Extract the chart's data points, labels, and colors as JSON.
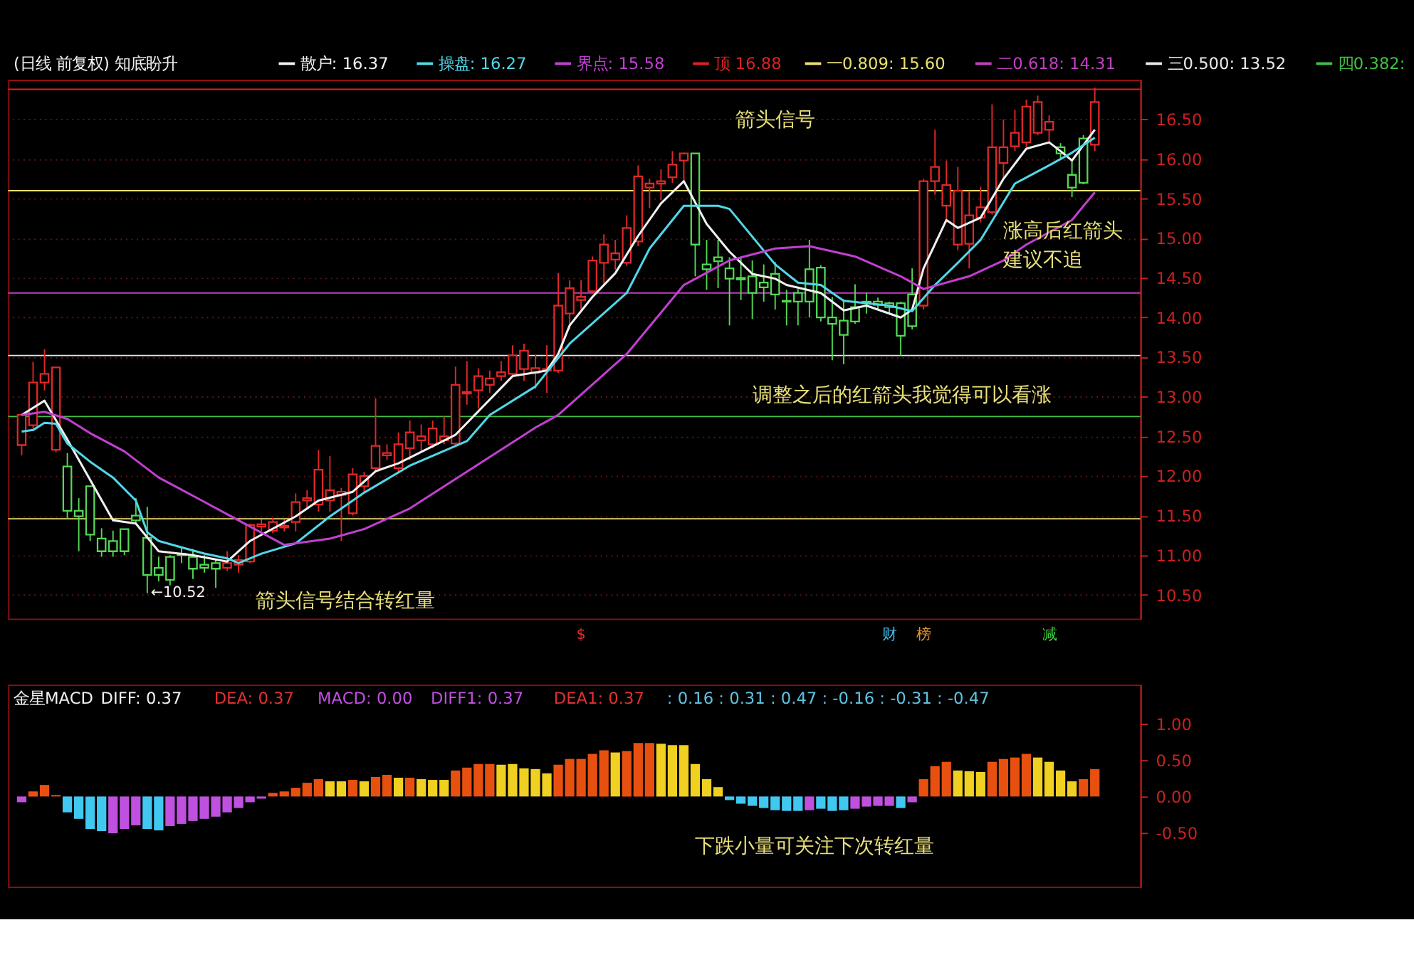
{
  "chart_data": [
    {
      "type": "candlestick",
      "title": "(日线 前复权) 知底盼升",
      "categories": [
        null,
        null,
        null,
        null,
        null,
        null,
        null,
        null,
        null,
        null,
        null,
        null,
        null,
        null,
        null,
        null,
        null,
        null,
        null,
        null,
        null,
        null,
        null,
        null,
        null,
        null,
        null,
        null,
        null,
        null,
        null,
        null,
        null,
        null,
        null,
        null,
        null,
        null,
        null,
        null,
        null,
        null,
        null,
        null,
        null,
        null,
        null,
        null,
        null,
        null,
        null,
        null,
        null,
        null,
        null,
        null,
        null,
        null,
        null,
        null,
        null,
        null,
        null,
        null,
        null,
        null,
        null,
        null,
        null,
        null,
        null,
        null,
        null,
        null,
        null,
        null,
        null,
        null,
        null,
        null,
        null,
        null,
        null,
        null,
        null,
        null,
        null,
        null,
        null,
        null,
        null,
        null,
        null,
        null,
        null
      ],
      "ohlc": [
        [
          12.39,
          12.77,
          12.26,
          12.77
        ],
        [
          12.64,
          13.44,
          12.6,
          13.18
        ],
        [
          13.18,
          13.6,
          13.08,
          13.29
        ],
        [
          12.33,
          13.37,
          12.3,
          13.37
        ],
        [
          12.12,
          12.29,
          11.46,
          11.56
        ],
        [
          11.56,
          11.72,
          11.05,
          11.49
        ],
        [
          11.87,
          11.87,
          11.18,
          11.26
        ],
        [
          11.21,
          11.34,
          10.98,
          11.05
        ],
        [
          11.18,
          11.31,
          10.98,
          11.05
        ],
        [
          11.33,
          11.33,
          11.0,
          11.05
        ],
        [
          11.5,
          11.72,
          11.4,
          11.44
        ],
        [
          11.22,
          11.61,
          10.52,
          10.75
        ],
        [
          10.84,
          10.98,
          10.67,
          10.75
        ],
        [
          10.98,
          11.0,
          10.62,
          10.69
        ],
        [
          11.02,
          11.1,
          10.9,
          11.0
        ],
        [
          10.98,
          11.08,
          10.7,
          10.83
        ],
        [
          10.88,
          11.0,
          10.78,
          10.84
        ],
        [
          10.9,
          10.95,
          10.59,
          10.83
        ],
        [
          10.84,
          11.05,
          10.8,
          10.9
        ],
        [
          10.88,
          11.0,
          10.78,
          10.94
        ],
        [
          10.92,
          11.4,
          10.9,
          11.38
        ],
        [
          11.36,
          11.45,
          11.3,
          11.39
        ],
        [
          11.31,
          11.47,
          11.28,
          11.42
        ],
        [
          11.35,
          11.45,
          11.3,
          11.37
        ],
        [
          11.42,
          11.78,
          11.3,
          11.67
        ],
        [
          11.69,
          11.82,
          11.6,
          11.72
        ],
        [
          11.64,
          12.33,
          11.55,
          12.08
        ],
        [
          11.69,
          12.25,
          11.55,
          11.82
        ],
        [
          11.76,
          11.85,
          11.18,
          11.8
        ],
        [
          11.53,
          12.1,
          11.5,
          12.02
        ],
        [
          11.87,
          12.05,
          11.8,
          12.0
        ],
        [
          12.1,
          12.98,
          12.05,
          12.38
        ],
        [
          12.26,
          12.4,
          12.2,
          12.29
        ],
        [
          12.1,
          12.55,
          12.05,
          12.4
        ],
        [
          12.35,
          12.7,
          12.2,
          12.55
        ],
        [
          12.45,
          12.65,
          12.3,
          12.5
        ],
        [
          12.4,
          12.7,
          12.35,
          12.6
        ],
        [
          12.45,
          12.75,
          12.4,
          12.5
        ],
        [
          12.41,
          13.38,
          12.38,
          13.15
        ],
        [
          13.04,
          13.45,
          12.9,
          13.06
        ],
        [
          13.08,
          13.36,
          12.85,
          13.26
        ],
        [
          13.15,
          13.33,
          13.05,
          13.23
        ],
        [
          13.26,
          13.45,
          13.2,
          13.31
        ],
        [
          13.29,
          13.65,
          13.25,
          13.52
        ],
        [
          13.35,
          13.67,
          13.2,
          13.58
        ],
        [
          13.3,
          13.53,
          13.1,
          13.36
        ],
        [
          13.33,
          13.65,
          13.05,
          13.35
        ],
        [
          13.33,
          14.56,
          13.3,
          14.15
        ],
        [
          14.05,
          14.47,
          13.85,
          14.37
        ],
        [
          14.22,
          14.47,
          14.1,
          14.26
        ],
        [
          14.33,
          14.77,
          14.3,
          14.72
        ],
        [
          14.69,
          15.05,
          14.4,
          14.92
        ],
        [
          14.73,
          14.98,
          14.6,
          14.81
        ],
        [
          14.69,
          15.29,
          14.65,
          15.13
        ],
        [
          14.96,
          15.92,
          14.9,
          15.78
        ],
        [
          15.64,
          15.75,
          15.38,
          15.69
        ],
        [
          15.69,
          15.87,
          15.48,
          15.72
        ],
        [
          15.77,
          16.1,
          15.7,
          15.93
        ],
        [
          15.98,
          16.08,
          15.7,
          16.07
        ],
        [
          16.07,
          16.07,
          14.52,
          14.92
        ],
        [
          14.67,
          14.98,
          14.35,
          14.61
        ],
        [
          14.76,
          14.98,
          14.37,
          14.71
        ],
        [
          14.62,
          14.76,
          13.9,
          14.49
        ],
        [
          14.5,
          14.76,
          14.22,
          14.48
        ],
        [
          14.52,
          14.72,
          13.98,
          14.31
        ],
        [
          14.44,
          14.67,
          14.2,
          14.38
        ],
        [
          14.55,
          14.7,
          14.1,
          14.29
        ],
        [
          14.21,
          14.35,
          13.9,
          14.2
        ],
        [
          14.31,
          14.36,
          13.9,
          14.2
        ],
        [
          14.61,
          14.98,
          14.0,
          14.2
        ],
        [
          14.63,
          14.66,
          13.95,
          14.0
        ],
        [
          14.0,
          14.26,
          13.46,
          13.92
        ],
        [
          13.96,
          14.23,
          13.41,
          13.78
        ],
        [
          14.13,
          14.42,
          13.92,
          13.95
        ],
        [
          14.2,
          14.31,
          14.05,
          14.18
        ],
        [
          14.2,
          14.25,
          14.1,
          14.16
        ],
        [
          14.18,
          14.2,
          14.05,
          14.13
        ],
        [
          14.18,
          14.2,
          13.52,
          13.77
        ],
        [
          14.29,
          14.62,
          13.85,
          13.89
        ],
        [
          14.15,
          15.75,
          14.1,
          15.72
        ],
        [
          15.72,
          16.37,
          15.55,
          15.9
        ],
        [
          15.41,
          15.98,
          15.2,
          15.67
        ],
        [
          14.92,
          15.9,
          14.85,
          15.6
        ],
        [
          14.93,
          15.6,
          14.62,
          15.29
        ],
        [
          15.26,
          15.65,
          15.2,
          15.39
        ],
        [
          15.33,
          16.69,
          15.3,
          16.15
        ],
        [
          15.95,
          16.5,
          15.75,
          16.15
        ],
        [
          16.16,
          16.62,
          16.1,
          16.33
        ],
        [
          16.21,
          16.75,
          16.15,
          16.66
        ],
        [
          16.33,
          16.8,
          16.3,
          16.72
        ],
        [
          16.37,
          16.55,
          16.2,
          16.47
        ],
        [
          16.15,
          16.2,
          16.0,
          16.07
        ],
        [
          15.8,
          16.0,
          15.52,
          15.64
        ],
        [
          16.26,
          16.3,
          15.68,
          15.7
        ],
        [
          16.18,
          16.9,
          16.1,
          16.72
        ]
      ],
      "series": [
        {
          "name": "散户: 16.37",
          "type": "line",
          "color": "#f0f0f0",
          "values": [
            12.77,
            null,
            12.95,
            null,
            12.46,
            null,
            null,
            null,
            11.44,
            null,
            11.4,
            null,
            11.05,
            null,
            null,
            11.0,
            null,
            null,
            10.92,
            null,
            11.18,
            null,
            null,
            null,
            11.49,
            null,
            11.69,
            null,
            null,
            11.8,
            null,
            12.06,
            null,
            12.16,
            null,
            null,
            null,
            null,
            12.52,
            null,
            null,
            null,
            null,
            13.26,
            null,
            null,
            13.33,
            13.54,
            13.9,
            null,
            14.26,
            null,
            14.56,
            null,
            15.03,
            null,
            15.44,
            null,
            15.72,
            null,
            15.18,
            null,
            14.83,
            null,
            14.55,
            null,
            14.49,
            14.41,
            null,
            null,
            14.31,
            null,
            14.09,
            null,
            14.15,
            null,
            null,
            14.0,
            14.1,
            14.62,
            null,
            15.23,
            15.13,
            null,
            15.26,
            null,
            15.75,
            null,
            16.13,
            null,
            16.21,
            16.1,
            15.98,
            null,
            16.37
          ]
        },
        {
          "name": "操盘: 16.27",
          "type": "line",
          "color": "#50d8e8",
          "values": [
            12.56,
            12.58,
            12.67,
            12.66,
            12.41,
            null,
            12.18,
            null,
            11.98,
            null,
            11.69,
            11.29,
            11.18,
            null,
            11.1,
            null,
            11.02,
            null,
            10.96,
            10.9,
            null,
            11.02,
            null,
            null,
            11.15,
            null,
            null,
            11.49,
            null,
            null,
            11.79,
            null,
            null,
            null,
            12.13,
            null,
            null,
            null,
            null,
            12.44,
            null,
            12.77,
            null,
            null,
            null,
            13.13,
            null,
            null,
            13.67,
            null,
            null,
            null,
            null,
            14.31,
            null,
            14.87,
            null,
            null,
            15.41,
            null,
            null,
            15.41,
            15.37,
            null,
            null,
            null,
            14.67,
            null,
            14.44,
            null,
            14.41,
            null,
            14.21,
            null,
            null,
            null,
            14.15,
            null,
            14.08,
            null,
            14.41,
            null,
            14.69,
            null,
            14.98,
            null,
            null,
            15.69,
            null,
            null,
            15.92,
            null,
            16.08,
            null,
            16.27
          ]
        },
        {
          "name": "界点: 15.58",
          "type": "line",
          "color": "#c040d0",
          "values": [
            12.77,
            null,
            12.81,
            null,
            12.72,
            null,
            12.54,
            null,
            null,
            12.31,
            null,
            null,
            11.98,
            null,
            null,
            11.75,
            null,
            null,
            null,
            11.44,
            null,
            null,
            null,
            11.13,
            null,
            null,
            null,
            11.21,
            null,
            null,
            11.33,
            null,
            null,
            null,
            11.59,
            null,
            null,
            null,
            null,
            null,
            null,
            null,
            null,
            null,
            null,
            12.61,
            null,
            12.77,
            null,
            null,
            null,
            null,
            null,
            13.54,
            null,
            null,
            null,
            null,
            14.41,
            null,
            null,
            null,
            14.72,
            null,
            null,
            null,
            14.87,
            null,
            null,
            14.9,
            null,
            null,
            null,
            14.77,
            null,
            null,
            null,
            14.52,
            null,
            14.36,
            null,
            null,
            null,
            14.52,
            null,
            null,
            14.72,
            null,
            14.92,
            null,
            null,
            null,
            15.23,
            null,
            15.58
          ]
        }
      ],
      "ylim": [
        10.2,
        17.0
      ],
      "yticks": [
        {
          "value": 10.5,
          "label": "10.50"
        },
        {
          "value": 11.0,
          "label": "11.00"
        },
        {
          "value": 11.5,
          "label": "11.50"
        },
        {
          "value": 12.0,
          "label": "12.00"
        },
        {
          "value": 12.5,
          "label": "12.50"
        },
        {
          "value": 13.0,
          "label": "13.00"
        },
        {
          "value": 13.5,
          "label": "13.50"
        },
        {
          "value": 14.0,
          "label": "14.00"
        },
        {
          "value": 14.5,
          "label": "14.50"
        },
        {
          "value": 15.0,
          "label": "15.00"
        },
        {
          "value": 15.5,
          "label": "15.50"
        },
        {
          "value": 16.0,
          "label": "16.00"
        },
        {
          "value": 16.5,
          "label": "16.50"
        }
      ],
      "tick_labels": "y",
      "grid": "y",
      "legend": "top",
      "ref_lines": [
        {
          "axis": "y",
          "value": 16.88,
          "label": "顶 16.88",
          "color": "#e02020"
        },
        {
          "axis": "y",
          "value": 15.6,
          "label": "一0.809: 15.60",
          "color": "#e8e070"
        },
        {
          "axis": "y",
          "value": 14.31,
          "label": "二0.618: 14.31",
          "color": "#c040c0"
        },
        {
          "axis": "y",
          "value": 13.52,
          "label": "三0.500: 13.52",
          "color": "#e8e8e8"
        },
        {
          "axis": "y",
          "value": 12.75,
          "label": "四0.382:",
          "color": "#40c040"
        },
        {
          "axis": "y",
          "value": 11.46,
          "color": "#e8e070"
        }
      ],
      "annotations": [
        "箭头信号",
        "涨高后红箭头",
        "建议不追",
        "调整之后的红箭头我觉得可以看涨",
        "箭头信号结合转红量",
        "←10.52",
        "$",
        "财",
        "榜",
        "减"
      ]
    },
    {
      "type": "bar",
      "title": "金星MACD",
      "categories": [
        null,
        null,
        null,
        null,
        null,
        null,
        null,
        null,
        null,
        null,
        null,
        null,
        null,
        null,
        null,
        null,
        null,
        null,
        null,
        null,
        null,
        null,
        null,
        null,
        null,
        null,
        null,
        null,
        null,
        null,
        null,
        null,
        null,
        null,
        null,
        null,
        null,
        null,
        null,
        null,
        null,
        null,
        null,
        null,
        null,
        null,
        null,
        null,
        null,
        null,
        null,
        null,
        null,
        null,
        null,
        null,
        null,
        null,
        null,
        null,
        null,
        null,
        null,
        null,
        null,
        null,
        null,
        null,
        null,
        null,
        null,
        null,
        null,
        null,
        null,
        null,
        null,
        null,
        null,
        null,
        null,
        null,
        null,
        null,
        null,
        null,
        null,
        null,
        null,
        null,
        null,
        null,
        null,
        null,
        null
      ],
      "values": [
        -0.08,
        0.07,
        0.16,
        0.02,
        -0.22,
        -0.31,
        -0.45,
        -0.48,
        -0.51,
        -0.45,
        -0.4,
        -0.45,
        -0.47,
        -0.41,
        -0.38,
        -0.34,
        -0.31,
        -0.28,
        -0.22,
        -0.16,
        -0.08,
        -0.03,
        0.05,
        0.07,
        0.12,
        0.19,
        0.24,
        0.21,
        0.21,
        0.23,
        0.21,
        0.27,
        0.3,
        0.26,
        0.26,
        0.24,
        0.23,
        0.23,
        0.36,
        0.4,
        0.45,
        0.45,
        0.44,
        0.45,
        0.39,
        0.38,
        0.32,
        0.44,
        0.52,
        0.52,
        0.59,
        0.64,
        0.61,
        0.63,
        0.74,
        0.74,
        0.73,
        0.71,
        0.71,
        0.45,
        0.24,
        0.13,
        -0.05,
        -0.1,
        -0.13,
        -0.16,
        -0.19,
        -0.2,
        -0.2,
        -0.19,
        -0.17,
        -0.2,
        -0.19,
        -0.17,
        -0.14,
        -0.13,
        -0.13,
        -0.16,
        -0.08,
        0.24,
        0.42,
        0.48,
        0.36,
        0.35,
        0.34,
        0.48,
        0.52,
        0.54,
        0.59,
        0.54,
        0.48,
        0.36,
        0.21,
        0.24,
        0.38
      ],
      "colors": [
        "#c050e0",
        "#e85010",
        "#e85010",
        "#e85010",
        "#40c8f0",
        "#40c8f0",
        "#40c8f0",
        "#40c8f0",
        "#c050e0",
        "#c050e0",
        "#c050e0",
        "#40c8f0",
        "#40c8f0",
        "#c050e0",
        "#c050e0",
        "#c050e0",
        "#c050e0",
        "#c050e0",
        "#c050e0",
        "#c050e0",
        "#c050e0",
        "#c050e0",
        "#e85010",
        "#e85010",
        "#e85010",
        "#e85010",
        "#e85010",
        "#f0d020",
        "#f0d020",
        "#e85010",
        "#f0d020",
        "#e85010",
        "#e85010",
        "#f0d020",
        "#e85010",
        "#f0d020",
        "#f0d020",
        "#f0d020",
        "#e85010",
        "#e85010",
        "#e85010",
        "#e85010",
        "#f0d020",
        "#f0d020",
        "#f0d020",
        "#f0d020",
        "#f0d020",
        "#e85010",
        "#e85010",
        "#e85010",
        "#e85010",
        "#e85010",
        "#f0d020",
        "#e85010",
        "#e85010",
        "#e85010",
        "#f0d020",
        "#f0d020",
        "#f0d020",
        "#f0d020",
        "#f0d020",
        "#f0d020",
        "#40c8f0",
        "#40c8f0",
        "#40c8f0",
        "#40c8f0",
        "#40c8f0",
        "#40c8f0",
        "#40c8f0",
        "#c050e0",
        "#40c8f0",
        "#40c8f0",
        "#40c8f0",
        "#c050e0",
        "#c050e0",
        "#c050e0",
        "#c050e0",
        "#40c8f0",
        "#c050e0",
        "#e85010",
        "#e85010",
        "#e85010",
        "#f0d020",
        "#f0d020",
        "#f0d020",
        "#e85010",
        "#e85010",
        "#e85010",
        "#e85010",
        "#f0d020",
        "#f0d020",
        "#f0d020",
        "#f0d020",
        "#e85010",
        "#e85010"
      ],
      "ylim": [
        -1.25,
        1.55
      ],
      "yticks": [
        {
          "value": -0.5,
          "label": "-0.50"
        },
        {
          "value": 0,
          "label": "0.00"
        },
        {
          "value": 0.5,
          "label": "0.50"
        },
        {
          "value": 1.0,
          "label": "1.00"
        }
      ],
      "tick_labels": "y",
      "annotations": [
        "DIFF: 0.37",
        "DEA: 0.37",
        "MACD: 0.00",
        "DIFF1: 0.37",
        "DEA1: 0.37",
        ": 0.16 : 0.31 : 0.47 : -0.16 : -0.31 : -0.47",
        "下跌小量可关注下次转红量"
      ]
    }
  ]
}
